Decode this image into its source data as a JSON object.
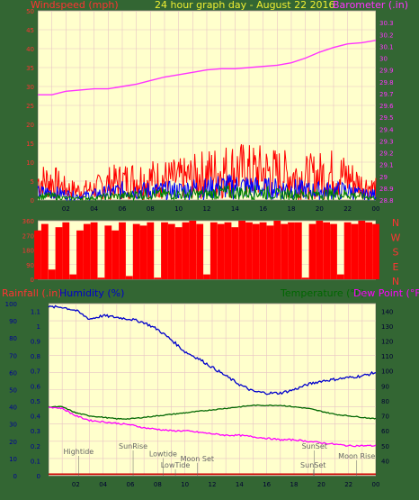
{
  "header": {
    "windspeed_label": "Windspeed (mph)",
    "title": "24 hour graph day - August 22 2016",
    "barometer_label": "Barometer (.in)"
  },
  "mid_header": {
    "rainfall_label": "Rainfall (.in)",
    "humidity_label": "Humidity (%)",
    "temperature_label": "Temperature (°F)",
    "dewpoint_label": "Dew Point (°F)"
  },
  "colors": {
    "frame": "#336633",
    "plot": "#FFFFCC",
    "grid": "#E8C4C4",
    "title": "#EEEE33",
    "wind_label": "#FF3333",
    "barometer": "#FF33FF",
    "wind_gust": "#FF0000",
    "wind_avg": "#0000FF",
    "wind_low": "#008000",
    "humidity": "#0000CC",
    "temperature": "#006600",
    "dewpoint": "#FF00FF",
    "rain": "#CC0000",
    "annot": "#666666",
    "left_axis": "#000099"
  },
  "chart_data": [
    {
      "type": "line",
      "name": "wind-barometer",
      "x_ticks": [
        "02",
        "04",
        "06",
        "08",
        "10",
        "12",
        "14",
        "16",
        "18",
        "20",
        "22",
        "00"
      ],
      "ylabel_left": "Windspeed (mph)",
      "ylim_left": [
        0,
        50
      ],
      "y_ticks_left": [
        0,
        5,
        10,
        15,
        20,
        25,
        30,
        35,
        40,
        45,
        50
      ],
      "ylabel_right": "Barometer (.in)",
      "ylim_right": [
        28.8,
        30.4
      ],
      "y_ticks_right": [
        "28.8",
        "28.9",
        "29",
        "29.1",
        "29.2",
        "29.3",
        "29.4",
        "29.5",
        "29.6",
        "29.7",
        "29.8",
        "29.9",
        "30",
        "30.1",
        "30.2",
        "30.3"
      ],
      "barometer": {
        "x": [
          0,
          1,
          2,
          3,
          4,
          5,
          6,
          7,
          8,
          9,
          10,
          11,
          12,
          13,
          14,
          15,
          16,
          17,
          18,
          19,
          20,
          21,
          22,
          23,
          24
        ],
        "y": [
          29.69,
          29.69,
          29.72,
          29.73,
          29.74,
          29.74,
          29.76,
          29.78,
          29.81,
          29.84,
          29.86,
          29.88,
          29.9,
          29.91,
          29.91,
          29.92,
          29.93,
          29.94,
          29.96,
          30,
          30.05,
          30.09,
          30.12,
          30.13,
          30.15
        ]
      },
      "wind_envelopes": {
        "x": [
          0,
          1,
          2,
          3,
          4,
          5,
          6,
          7,
          8,
          9,
          10,
          11,
          12,
          13,
          14,
          15,
          16,
          17,
          18,
          19,
          20,
          21,
          22,
          23,
          24
        ],
        "gust_max": [
          10,
          10,
          6,
          5,
          6,
          9,
          10,
          11,
          11,
          11,
          11,
          12,
          14,
          15,
          16,
          15,
          15,
          14,
          13,
          12,
          13,
          14,
          12,
          8,
          6
        ],
        "avg_max": [
          4,
          4,
          3,
          2,
          3,
          4,
          5,
          5,
          5,
          5,
          5,
          6,
          6,
          7,
          7,
          7,
          6,
          6,
          6,
          5,
          5,
          5,
          5,
          3,
          3
        ],
        "low_max": [
          2,
          2,
          1,
          1,
          1,
          2,
          2,
          3,
          3,
          3,
          3,
          3,
          3,
          4,
          4,
          4,
          4,
          3,
          3,
          3,
          3,
          3,
          3,
          2,
          1
        ]
      }
    },
    {
      "type": "bar",
      "name": "wind-direction",
      "y_ticks": [
        0,
        90,
        180,
        270,
        360
      ],
      "ylim": [
        0,
        360
      ],
      "compass": [
        "N",
        "W",
        "S",
        "E",
        "N"
      ],
      "x": [
        0,
        0.5,
        1,
        1.5,
        2,
        2.5,
        3,
        3.5,
        4,
        4.5,
        5,
        5.5,
        6,
        6.5,
        7,
        7.5,
        8,
        8.5,
        9,
        9.5,
        10,
        10.5,
        11,
        11.5,
        12,
        12.5,
        13,
        13.5,
        14,
        14.5,
        15,
        15.5,
        16,
        16.5,
        17,
        17.5,
        18,
        18.5,
        19,
        19.5,
        20,
        20.5,
        21,
        21.5,
        22,
        22.5,
        23,
        23.5,
        24
      ],
      "values": [
        300,
        340,
        60,
        320,
        350,
        30,
        300,
        340,
        350,
        10,
        330,
        300,
        350,
        20,
        340,
        330,
        350,
        10,
        350,
        340,
        320,
        350,
        360,
        340,
        30,
        350,
        340,
        350,
        320,
        360,
        350,
        340,
        350,
        330,
        360,
        340,
        350,
        350,
        10,
        340,
        360,
        350,
        340,
        30,
        350,
        340,
        360,
        350,
        340
      ]
    },
    {
      "type": "line",
      "name": "humidity-temperature-rain",
      "x_ticks": [
        "02",
        "04",
        "06",
        "08",
        "10",
        "12",
        "14",
        "16",
        "18",
        "20",
        "22",
        "00"
      ],
      "ylabel_rain": "Rainfall (.in)",
      "ylim_rain": [
        0,
        1.15
      ],
      "y_ticks_rain": [
        "0",
        "0.1",
        "0.2",
        "0.3",
        "0.4",
        "0.5",
        "0.6",
        "0.7",
        "0.8",
        "0.9",
        "1",
        "1.1"
      ],
      "ylabel_humidity": "Humidity (%)",
      "ylim_humidity": [
        0,
        100
      ],
      "y_ticks_humidity": [
        0,
        10,
        20,
        30,
        40,
        50,
        60,
        70,
        80,
        90,
        100
      ],
      "ylabel_temperature": "Temperature (°F)",
      "ylabel_dewpoint": "Dew Point (°F)",
      "ylim_temperature": [
        30,
        145
      ],
      "y_ticks_temperature": [
        40,
        50,
        60,
        70,
        80,
        90,
        100,
        110,
        120,
        130,
        140
      ],
      "x": [
        0,
        1,
        2,
        3,
        4,
        5,
        6,
        7,
        8,
        9,
        10,
        11,
        12,
        13,
        14,
        15,
        16,
        17,
        18,
        19,
        20,
        21,
        22,
        23,
        24
      ],
      "humidity": [
        98,
        98,
        96,
        91,
        93,
        92,
        91,
        89,
        85,
        79,
        72,
        68,
        63,
        58,
        53,
        49,
        48,
        48,
        50,
        53,
        55,
        56,
        57,
        58,
        60
      ],
      "temperature": [
        76,
        76,
        72,
        70,
        69,
        68,
        68,
        69,
        70,
        71,
        72,
        73,
        74,
        75,
        76,
        77,
        77,
        77,
        76,
        75,
        73,
        71,
        70,
        69,
        68
      ],
      "dewpoint": [
        76,
        75,
        70,
        67,
        66,
        65,
        64,
        62,
        61,
        60,
        60,
        59,
        58,
        57,
        57,
        56,
        55,
        54,
        54,
        53,
        52,
        51,
        50,
        50,
        50
      ],
      "rain": [
        0.01,
        0.01,
        0.01,
        0.01,
        0.01,
        0.01,
        0.01,
        0.01,
        0.01,
        0.01,
        0.01,
        0.01,
        0.01,
        0.01,
        0.01,
        0.01,
        0.01,
        0.01,
        0.01,
        0.01,
        0.01,
        0.01,
        0.01,
        0.01,
        0.01
      ],
      "annotations": [
        {
          "text": "Hightide",
          "x": 2.2,
          "level": 0.1
        },
        {
          "text": "SunRise",
          "x": 6.2,
          "level": 0.2
        },
        {
          "text": "Lowtide",
          "x": 8.4,
          "level": 0.06
        },
        {
          "text": "Moon Set",
          "x": 10.9,
          "level": -0.03
        },
        {
          "text": "LowTide",
          "x": 9.3,
          "level": -0.15
        },
        {
          "text": "SunSet",
          "x": 19.4,
          "level": -0.15
        },
        {
          "text": "SunSet",
          "x": 19.5,
          "level": 0.2
        },
        {
          "text": "Moon Rise",
          "x": 22.6,
          "level": 0.02
        }
      ]
    }
  ]
}
